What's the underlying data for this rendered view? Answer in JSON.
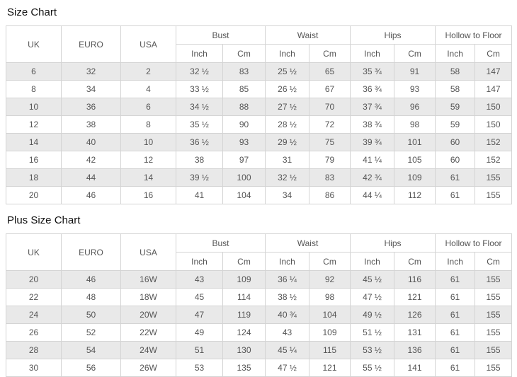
{
  "titles": {
    "size_chart": "Size Chart",
    "plus_size_chart": "Plus Size Chart"
  },
  "columns": {
    "uk": "UK",
    "euro": "EURO",
    "usa": "USA",
    "groups": {
      "bust": "Bust",
      "waist": "Waist",
      "hips": "Hips",
      "hollow_to_floor": "Hollow to Floor"
    },
    "units": {
      "inch": "Inch",
      "cm": "Cm"
    }
  },
  "size_chart": {
    "rows": [
      [
        "6",
        "32",
        "2",
        "32 ½",
        "83",
        "25 ½",
        "65",
        "35 ¾",
        "91",
        "58",
        "147"
      ],
      [
        "8",
        "34",
        "4",
        "33 ½",
        "85",
        "26 ½",
        "67",
        "36 ¾",
        "93",
        "58",
        "147"
      ],
      [
        "10",
        "36",
        "6",
        "34 ½",
        "88",
        "27 ½",
        "70",
        "37 ¾",
        "96",
        "59",
        "150"
      ],
      [
        "12",
        "38",
        "8",
        "35 ½",
        "90",
        "28 ½",
        "72",
        "38 ¾",
        "98",
        "59",
        "150"
      ],
      [
        "14",
        "40",
        "10",
        "36 ½",
        "93",
        "29 ½",
        "75",
        "39 ¾",
        "101",
        "60",
        "152"
      ],
      [
        "16",
        "42",
        "12",
        "38",
        "97",
        "31",
        "79",
        "41 ¼",
        "105",
        "60",
        "152"
      ],
      [
        "18",
        "44",
        "14",
        "39 ½",
        "100",
        "32 ½",
        "83",
        "42 ¾",
        "109",
        "61",
        "155"
      ],
      [
        "20",
        "46",
        "16",
        "41",
        "104",
        "34",
        "86",
        "44 ¼",
        "112",
        "61",
        "155"
      ]
    ]
  },
  "plus_size_chart": {
    "rows": [
      [
        "20",
        "46",
        "16W",
        "43",
        "109",
        "36 ¼",
        "92",
        "45 ½",
        "116",
        "61",
        "155"
      ],
      [
        "22",
        "48",
        "18W",
        "45",
        "114",
        "38 ½",
        "98",
        "47 ½",
        "121",
        "61",
        "155"
      ],
      [
        "24",
        "50",
        "20W",
        "47",
        "119",
        "40 ¾",
        "104",
        "49 ½",
        "126",
        "61",
        "155"
      ],
      [
        "26",
        "52",
        "22W",
        "49",
        "124",
        "43",
        "109",
        "51 ½",
        "131",
        "61",
        "155"
      ],
      [
        "28",
        "54",
        "24W",
        "51",
        "130",
        "45 ¼",
        "115",
        "53 ½",
        "136",
        "61",
        "155"
      ],
      [
        "30",
        "56",
        "26W",
        "53",
        "135",
        "47 ½",
        "121",
        "55 ½",
        "141",
        "61",
        "155"
      ]
    ]
  },
  "colors": {
    "stripe": "#e9e9e9",
    "border": "#d4d4d4",
    "text": "#555555",
    "title": "#111111",
    "background": "#ffffff"
  }
}
